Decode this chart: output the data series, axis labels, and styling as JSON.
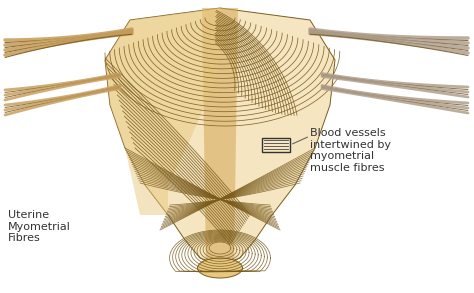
{
  "bg_color": "#ffffff",
  "annotation_blood_vessels": "Blood vessels\nintertwined by\nmyometrial\nmuscle fibres",
  "annotation_uterine": "Uterine\nMyometrial\nFibres",
  "fiber_color": "#7A5C1E",
  "fill_light": "#F5E5C0",
  "fill_mid": "#E8C880",
  "fill_dark": "#D4A855",
  "fill_pale": "#FAF0DC",
  "tube_fill_left": "#C8A060",
  "tube_fill_right": "#B0A090",
  "text_color": "#333333",
  "box_color": "#333333",
  "ann_line_color": "#666666",
  "font_size": 8,
  "figsize": [
    4.74,
    2.93
  ],
  "dpi": 100
}
